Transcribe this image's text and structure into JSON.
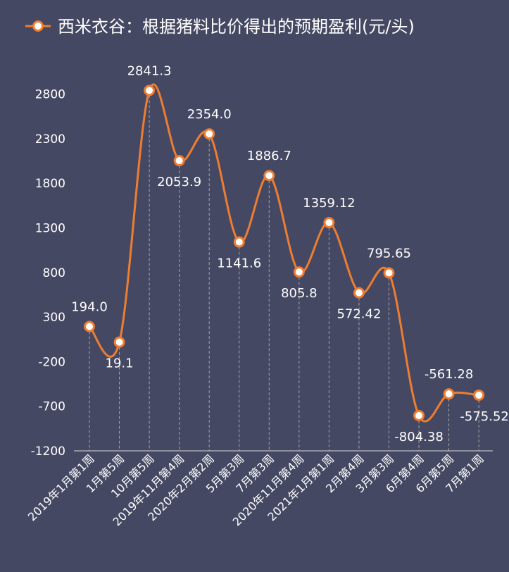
{
  "colors": {
    "background": "#454862",
    "line": "#ED7D31",
    "text": "#FFFFFF",
    "axis": "#D9D9D9",
    "dropline": "#A6A6A6"
  },
  "legend": {
    "label": "西米衣谷：根据猪料比价得出的预期盈利(元/头)",
    "placement": "top-left"
  },
  "chart_data": {
    "type": "line",
    "smooth": true,
    "categories": [
      "2019年1月第1周",
      "1月第5周",
      "10月第5周",
      "2019年11月第4周",
      "2020年2月第2周",
      "5月第3周",
      "7月第3周",
      "2020年11月第4周",
      "2021年1月第1周",
      "2月第4周",
      "3月第3周",
      "6月第4周",
      "6月第5周",
      "7月第1周"
    ],
    "series": [
      {
        "name": "西米衣谷：根据猪料比价得出的预期盈利(元/头)",
        "values": [
          194.0,
          19.1,
          2841.3,
          2053.9,
          2354.0,
          1141.6,
          1886.7,
          805.8,
          1359.12,
          572.42,
          795.65,
          -804.38,
          -561.28,
          -575.52
        ],
        "labels": [
          "194.0",
          "19.1",
          "2841.3",
          "2053.9",
          "2354.0",
          "1141.6",
          "1886.7",
          "805.8",
          "1359.12",
          "572.42",
          "795.65",
          "-804.38",
          "-561.28",
          "-575.52"
        ]
      }
    ],
    "y_ticks": [
      "2800",
      "2300",
      "1800",
      "1300",
      "800",
      "300",
      "-200",
      "-700",
      "-1200"
    ],
    "ylim": [
      -1200,
      3000
    ],
    "grid": false,
    "drop_lines": true
  }
}
